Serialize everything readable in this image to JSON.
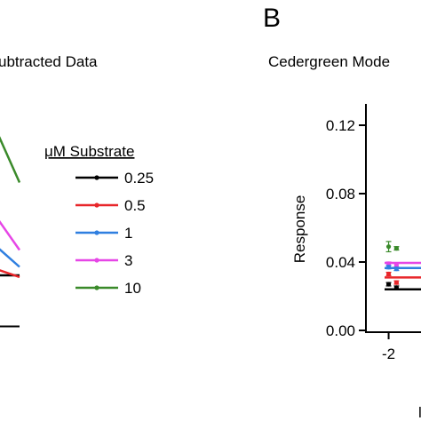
{
  "panel_letter": "B",
  "left_panel_title": "ubtracted Data",
  "right_panel_title": "Cedergreen Mode",
  "legend": {
    "title": "μM Substrate",
    "entries": [
      {
        "label": "0.25",
        "color": "#000000"
      },
      {
        "label": "0.5",
        "color": "#e8262a"
      },
      {
        "label": "1",
        "color": "#2f7fe0"
      },
      {
        "label": "3",
        "color": "#e646e6"
      },
      {
        "label": "10",
        "color": "#3a8a2a"
      }
    ]
  },
  "chart_data": [
    {
      "type": "line",
      "title": "ubtracted Data",
      "series": [
        {
          "name": "0.25",
          "color": "#000000",
          "values": [
            0.03,
            0.03
          ]
        },
        {
          "name": "0.5",
          "color": "#e8262a",
          "values": [
            0.034,
            0.029
          ]
        },
        {
          "name": "1",
          "color": "#2f7fe0",
          "values": [
            0.048,
            0.035
          ]
        },
        {
          "name": "3",
          "color": "#e646e6",
          "values": [
            0.066,
            0.045
          ]
        },
        {
          "name": "10",
          "color": "#3a8a2a",
          "values": [
            0.118,
            0.085
          ]
        }
      ],
      "ylim": [
        0.0,
        0.13
      ]
    },
    {
      "type": "scatter",
      "title": "Cedergreen Mode",
      "ylabel": "Response",
      "xlabel": "",
      "xlim": [
        -2.6,
        -1.2
      ],
      "ylim": [
        -0.004,
        0.12
      ],
      "xticks": [
        "-2"
      ],
      "yticks": [
        "0.00",
        "0.04",
        "0.08",
        "0.12"
      ],
      "series": [
        {
          "name": "10",
          "color": "#3a8a2a",
          "x": [
            -2.0,
            -1.85
          ],
          "y": [
            0.049,
            0.048
          ],
          "err": [
            0.003,
            0.001
          ]
        },
        {
          "name": "3",
          "color": "#e646e6",
          "x": [
            -2.0,
            -1.85
          ],
          "y": [
            0.039,
            0.038
          ],
          "err": [
            0.001,
            0.001
          ]
        },
        {
          "name": "1",
          "color": "#2f7fe0",
          "x": [
            -2.0,
            -1.85
          ],
          "y": [
            0.037,
            0.036
          ],
          "err": [
            0.001,
            0.001
          ]
        },
        {
          "name": "0.5",
          "color": "#e8262a",
          "x": [
            -2.0,
            -1.85
          ],
          "y": [
            0.033,
            0.028
          ],
          "err": [
            0.001,
            0.001
          ]
        },
        {
          "name": "0.25",
          "color": "#000000",
          "x": [
            -2.0,
            -1.85
          ],
          "y": [
            0.027,
            0.025
          ],
          "err": [
            0.001,
            0.001
          ]
        }
      ],
      "fits": [
        {
          "name": "3",
          "color": "#e646e6",
          "y": 0.0395
        },
        {
          "name": "1",
          "color": "#2f7fe0",
          "y": 0.0365
        },
        {
          "name": "0.5",
          "color": "#e8262a",
          "y": 0.031
        },
        {
          "name": "0.25",
          "color": "#000000",
          "y": 0.024
        }
      ]
    }
  ]
}
